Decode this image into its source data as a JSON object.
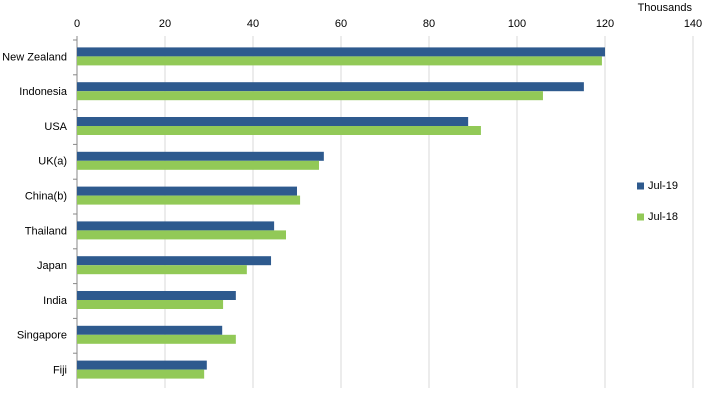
{
  "chart_data": {
    "type": "hbar",
    "unit_label": "Thousands",
    "categories": [
      "New Zealand",
      "Indonesia",
      "USA",
      "UK(a)",
      "China(b)",
      "Thailand",
      "Japan",
      "India",
      "Singapore",
      "Fiji"
    ],
    "series": [
      {
        "name": "Jul-19",
        "color": "#2e5a8e",
        "values": [
          120,
          115.2,
          88.9,
          56.1,
          50,
          44.8,
          44.1,
          36.1,
          33,
          29.5
        ]
      },
      {
        "name": "Jul-18",
        "color": "#92c957",
        "values": [
          119.3,
          105.9,
          91.8,
          55,
          50.7,
          47.5,
          38.6,
          33.2,
          36.1,
          28.9
        ]
      }
    ],
    "xlim": [
      0,
      140
    ],
    "xticks": [
      0,
      20,
      40,
      60,
      80,
      100,
      120,
      140
    ],
    "grid": true,
    "legend": "right"
  }
}
